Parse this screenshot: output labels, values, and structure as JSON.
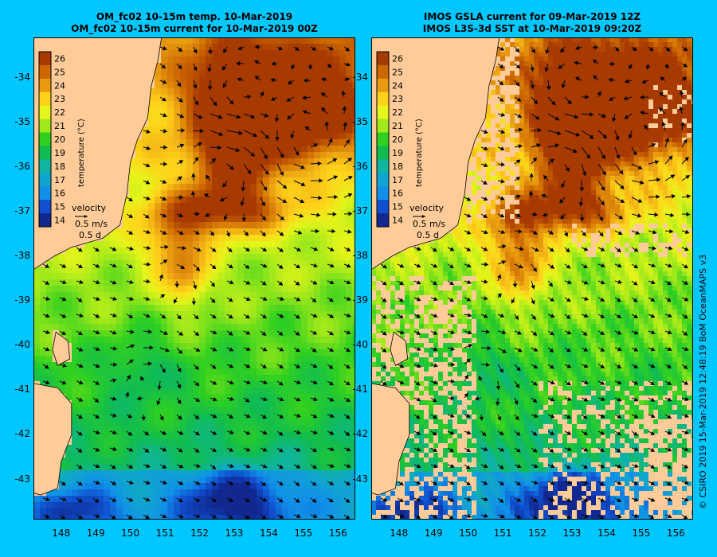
{
  "titles": {
    "left_line1": "OM_fc02 10-15m temp. 10-Mar-2019",
    "left_line2": "OM_fc02 10-15m current for 10-Mar-2019 00Z",
    "right_line1": "IMOS GSLA current for 09-Mar-2019 12Z",
    "right_line2": "IMOS L3S-3d SST at 10-Mar-2019 09:20Z"
  },
  "y_ticks": [
    "-34",
    "-35",
    "-36",
    "-37",
    "-38",
    "-39",
    "-40",
    "-41",
    "-42",
    "-43"
  ],
  "x_ticks": [
    "148",
    "149",
    "150",
    "151",
    "152",
    "153",
    "154",
    "155",
    "156"
  ],
  "colorbar": {
    "title": "temperature (°C)",
    "ticks": [
      "26",
      "25",
      "24",
      "23",
      "22",
      "21",
      "20",
      "19",
      "18",
      "17",
      "16",
      "15",
      "14"
    ]
  },
  "velocity_legend": {
    "title": "velocity",
    "speed": "0.5 m/s",
    "duration": "0.5 d"
  },
  "credit": "© CSIRO 2019   15-Mar-2019 12:48:19 BoM OceanMAPS v3",
  "colors": {
    "background": "#00c8ff",
    "land": "#ffcc99",
    "warm": "#cc6600",
    "cool": "#1050d0"
  },
  "map_data": {
    "type": "heatmap",
    "lon_range": [
      147.2,
      156.5
    ],
    "lat_range": [
      -43.9,
      -33.1
    ],
    "temp_range": [
      13.5,
      26.5
    ]
  }
}
